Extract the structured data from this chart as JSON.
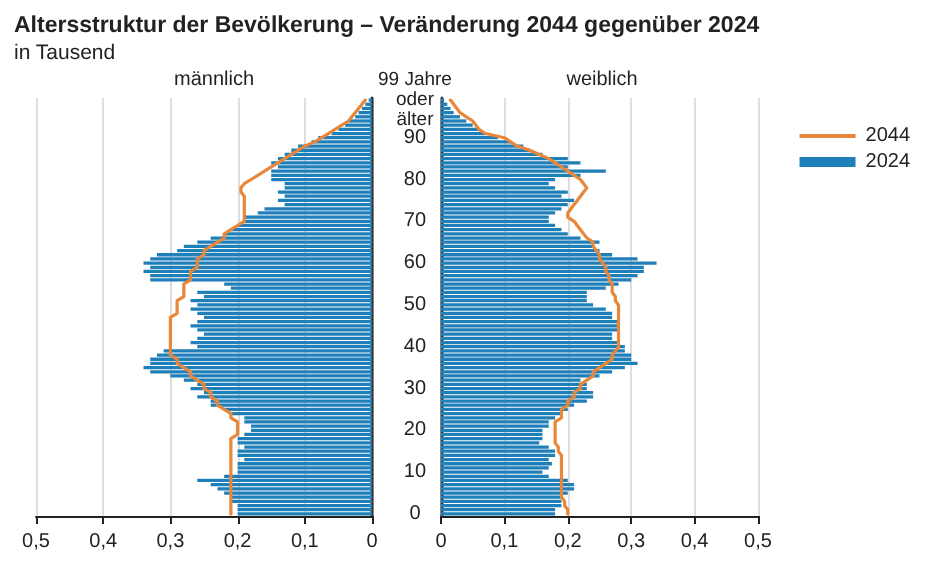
{
  "chart_data": [
    {
      "type": "bar",
      "orientation": "horizontal",
      "title": "Altersstruktur der Bevölkerung – Veränderung 2044 gegenüber 2024",
      "subtitle": "in Tausend",
      "xlabel": "männlich",
      "categories": [
        null,
        null,
        null,
        null,
        null,
        null,
        null,
        null,
        null,
        null,
        null,
        null,
        null,
        null,
        null,
        null,
        null,
        null,
        null,
        null,
        null,
        null,
        null,
        null,
        null,
        null,
        null,
        null,
        null,
        null,
        null,
        null,
        null,
        null,
        null,
        null,
        null,
        null,
        null,
        null,
        null,
        null,
        null,
        null,
        null,
        null,
        null,
        null,
        null,
        null,
        null,
        null,
        null,
        null,
        null,
        null,
        null,
        null,
        null,
        null,
        null,
        null,
        null,
        null,
        null,
        null,
        null,
        null,
        null,
        null,
        null,
        null,
        null,
        null,
        null,
        null,
        null,
        null,
        null,
        null,
        null,
        null,
        null,
        null,
        null,
        null,
        null,
        null,
        null,
        null,
        null,
        null,
        null,
        null,
        null,
        null,
        null,
        null,
        null,
        null
      ],
      "series": [
        {
          "type": "bar",
          "color": "#1f7fb8",
          "values": [
            0.005,
            0.01,
            0.015,
            0.02,
            0.025,
            0.035,
            0.04,
            0.05,
            0.06,
            0.08,
            0.09,
            0.11,
            0.12,
            0.13,
            0.14,
            0.15,
            0.14,
            0.15,
            0.15,
            0.15,
            0.13,
            0.13,
            0.14,
            0.13,
            0.14,
            0.13,
            0.16,
            0.17,
            0.19,
            0.19,
            0.2,
            0.21,
            0.22,
            0.24,
            0.26,
            0.28,
            0.29,
            0.32,
            0.33,
            0.34,
            0.33,
            0.34,
            0.33,
            0.33,
            0.22,
            0.21,
            0.26,
            0.25,
            0.27,
            0.26,
            0.27,
            0.26,
            0.25,
            0.26,
            0.27,
            0.26,
            0.25,
            0.26,
            0.27,
            0.26,
            0.31,
            0.32,
            0.33,
            0.33,
            0.34,
            0.33,
            0.3,
            0.28,
            0.26,
            0.27,
            0.25,
            0.26,
            0.24,
            0.24,
            0.22,
            0.21,
            0.19,
            0.19,
            0.18,
            0.18,
            0.19,
            0.2,
            0.2,
            0.19,
            0.2,
            0.2,
            0.19,
            0.2,
            0.2,
            0.2,
            0.22,
            0.26,
            0.24,
            0.23,
            0.22,
            0.21,
            0.21,
            0.2,
            0.2,
            0.2
          ]
        },
        {
          "type": "line",
          "color": "#e8873a",
          "values": [
            0.01,
            0.015,
            0.02,
            0.025,
            0.03,
            0.035,
            0.045,
            0.055,
            0.065,
            0.075,
            0.085,
            0.1,
            0.11,
            0.12,
            0.13,
            0.14,
            0.15,
            0.16,
            0.17,
            0.18,
            0.19,
            0.195,
            0.195,
            0.19,
            0.19,
            0.19,
            0.19,
            0.19,
            0.19,
            0.19,
            0.2,
            0.21,
            0.22,
            0.22,
            0.23,
            0.24,
            0.25,
            0.25,
            0.26,
            0.26,
            0.26,
            0.27,
            0.27,
            0.27,
            0.28,
            0.28,
            0.28,
            0.28,
            0.29,
            0.29,
            0.29,
            0.29,
            0.3,
            0.3,
            0.3,
            0.3,
            0.3,
            0.3,
            0.3,
            0.3,
            0.3,
            0.3,
            0.29,
            0.29,
            0.28,
            0.27,
            0.27,
            0.26,
            0.25,
            0.25,
            0.24,
            0.24,
            0.23,
            0.23,
            0.22,
            0.21,
            0.21,
            0.2,
            0.2,
            0.2,
            0.2,
            0.21,
            0.21,
            0.21,
            0.21,
            0.21,
            0.21,
            0.21,
            0.21,
            0.21,
            0.21,
            0.21,
            0.21,
            0.21,
            0.21,
            0.21,
            0.21,
            0.21,
            0.21,
            0.21
          ]
        }
      ],
      "xlim": [
        0.5,
        0
      ],
      "xticks": [
        {
          "value": 0.5,
          "label": "0,5"
        },
        {
          "value": 0.4,
          "label": "0,4"
        },
        {
          "value": 0.3,
          "label": "0,3"
        },
        {
          "value": 0.2,
          "label": "0,2"
        },
        {
          "value": 0.1,
          "label": "0,1"
        },
        0
      ],
      "grid": "x",
      "legend": false,
      "tick_labels": "x"
    },
    {
      "type": "bar",
      "orientation": "horizontal",
      "xlabel": "weiblich",
      "categories": [
        "99 Jahre oder älter",
        null,
        null,
        null,
        null,
        null,
        null,
        null,
        null,
        "90",
        null,
        null,
        null,
        null,
        null,
        null,
        null,
        null,
        null,
        "80",
        null,
        null,
        null,
        null,
        null,
        null,
        null,
        null,
        null,
        "70",
        null,
        null,
        null,
        null,
        null,
        null,
        null,
        null,
        null,
        "60",
        null,
        null,
        null,
        null,
        null,
        null,
        null,
        null,
        null,
        "50",
        null,
        null,
        null,
        null,
        null,
        null,
        null,
        null,
        null,
        "40",
        null,
        null,
        null,
        null,
        null,
        null,
        null,
        null,
        null,
        "30",
        null,
        null,
        null,
        null,
        null,
        null,
        null,
        null,
        null,
        "20",
        null,
        null,
        null,
        null,
        null,
        null,
        null,
        null,
        null,
        "10",
        null,
        null,
        null,
        null,
        null,
        null,
        null,
        null,
        null,
        "0"
      ],
      "series": [
        {
          "type": "bar",
          "name": "2024",
          "color": "#1f7fb8",
          "values": [
            0.005,
            0.01,
            0.015,
            0.02,
            0.03,
            0.04,
            0.05,
            0.06,
            0.07,
            0.09,
            0.11,
            0.13,
            0.14,
            0.16,
            0.2,
            0.22,
            0.2,
            0.26,
            0.22,
            0.18,
            0.17,
            0.18,
            0.2,
            0.19,
            0.21,
            0.2,
            0.19,
            0.18,
            0.17,
            0.17,
            0.18,
            0.19,
            0.2,
            0.22,
            0.25,
            0.24,
            0.25,
            0.27,
            0.31,
            0.34,
            0.32,
            0.32,
            0.31,
            0.3,
            0.28,
            0.26,
            0.23,
            0.23,
            0.23,
            0.24,
            0.26,
            0.27,
            0.27,
            0.28,
            0.28,
            0.28,
            0.27,
            0.27,
            0.28,
            0.29,
            0.29,
            0.3,
            0.3,
            0.31,
            0.29,
            0.27,
            0.25,
            0.22,
            0.23,
            0.23,
            0.24,
            0.24,
            0.23,
            0.21,
            0.2,
            0.19,
            0.18,
            0.17,
            0.17,
            0.16,
            0.16,
            0.16,
            0.155,
            0.17,
            0.18,
            0.18,
            0.17,
            0.175,
            0.17,
            0.16,
            0.17,
            0.2,
            0.21,
            0.21,
            0.2,
            0.19,
            0.19,
            0.19,
            0.18,
            0.18
          ]
        },
        {
          "type": "line",
          "name": "2044",
          "color": "#e8873a",
          "values": [
            0.015,
            0.02,
            0.025,
            0.03,
            0.04,
            0.05,
            0.055,
            0.06,
            0.07,
            0.1,
            0.11,
            0.12,
            0.14,
            0.155,
            0.17,
            0.18,
            0.19,
            0.2,
            0.21,
            0.22,
            0.225,
            0.23,
            0.225,
            0.22,
            0.215,
            0.21,
            0.205,
            0.2,
            0.2,
            0.21,
            0.215,
            0.22,
            0.225,
            0.23,
            0.24,
            0.24,
            0.245,
            0.25,
            0.25,
            0.255,
            0.26,
            0.26,
            0.265,
            0.265,
            0.27,
            0.27,
            0.27,
            0.275,
            0.275,
            0.28,
            0.28,
            0.28,
            0.28,
            0.28,
            0.28,
            0.28,
            0.28,
            0.28,
            0.28,
            0.28,
            0.275,
            0.27,
            0.27,
            0.26,
            0.25,
            0.24,
            0.24,
            0.23,
            0.22,
            0.22,
            0.21,
            0.21,
            0.2,
            0.2,
            0.19,
            0.19,
            0.19,
            0.18,
            0.18,
            0.18,
            0.18,
            0.18,
            0.18,
            0.185,
            0.185,
            0.19,
            0.19,
            0.19,
            0.19,
            0.19,
            0.19,
            0.19,
            0.19,
            0.19,
            0.19,
            0.19,
            0.195,
            0.195,
            0.2,
            0.2
          ]
        }
      ],
      "xlim": [
        0,
        0.5
      ],
      "xticks": [
        0,
        {
          "value": 0.1,
          "label": "0,1"
        },
        {
          "value": 0.2,
          "label": "0,2"
        },
        {
          "value": 0.3,
          "label": "0,3"
        },
        {
          "value": 0.4,
          "label": "0,4"
        },
        {
          "value": 0.5,
          "label": "0,5"
        }
      ],
      "grid": "x",
      "legend": "right"
    }
  ]
}
